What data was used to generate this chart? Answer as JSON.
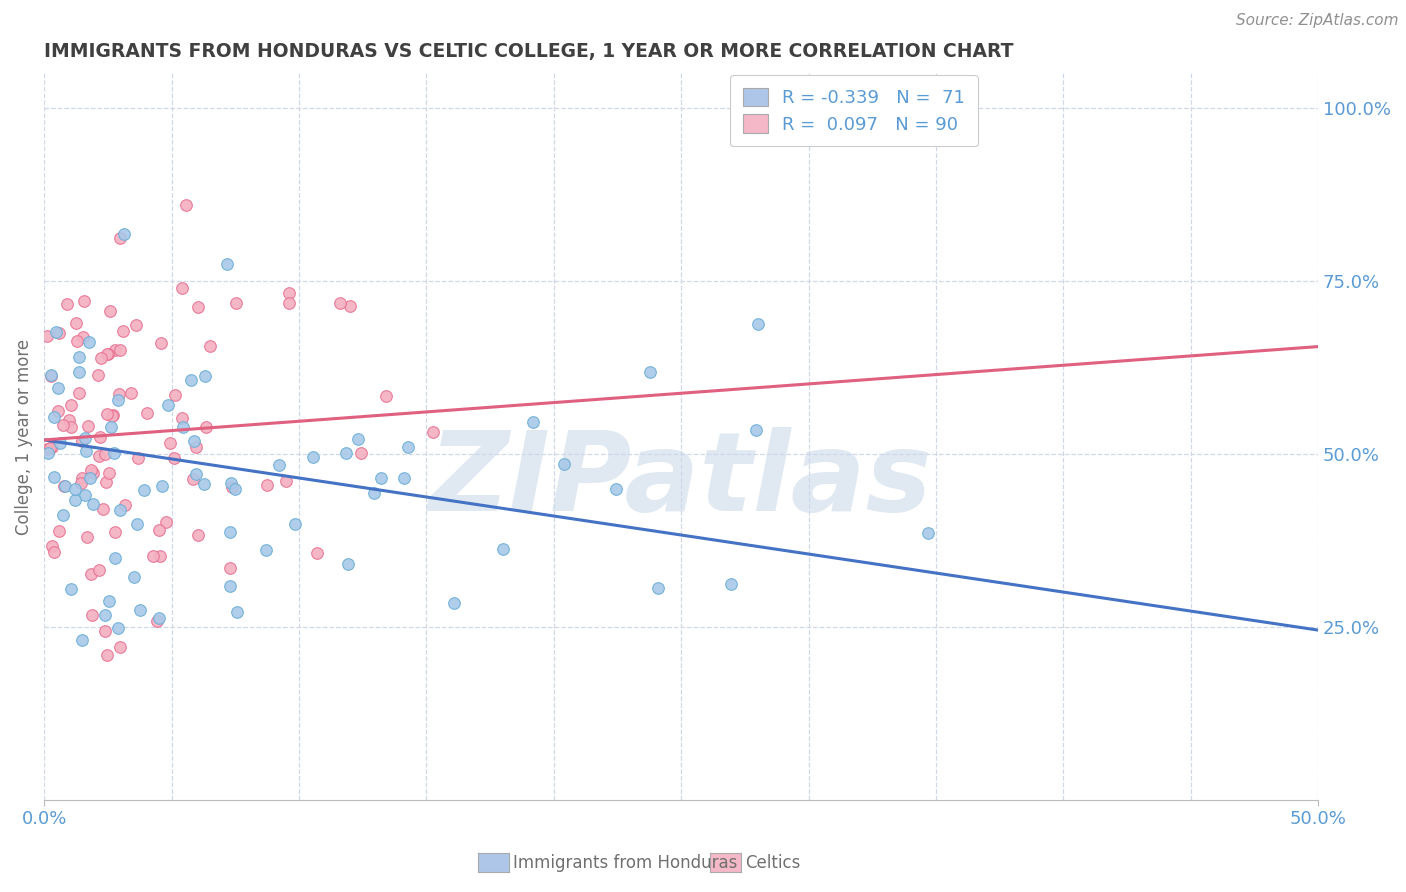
{
  "title": "IMMIGRANTS FROM HONDURAS VS CELTIC COLLEGE, 1 YEAR OR MORE CORRELATION CHART",
  "source_text": "Source: ZipAtlas.com",
  "ylabel": "College, 1 year or more",
  "xlim": [
    0.0,
    0.5
  ],
  "ylim": [
    0.0,
    1.05
  ],
  "xtick_labels": [
    "0.0%",
    "50.0%"
  ],
  "ytick_labels_right": [
    "25.0%",
    "50.0%",
    "75.0%",
    "100.0%"
  ],
  "ytick_values_right": [
    0.25,
    0.5,
    0.75,
    1.0
  ],
  "legend_entries": [
    {
      "label_r": "R = -0.339",
      "label_n": "N =  71",
      "color": "#aec6e8"
    },
    {
      "label_r": "R =  0.097",
      "label_n": "N = 90",
      "color": "#f4b8c8"
    }
  ],
  "scatter_blue": {
    "color": "#a8c8e8",
    "edge_color": "#6aaed6",
    "R": -0.339,
    "N": 71,
    "seed": 42
  },
  "scatter_pink": {
    "color": "#f4b0c0",
    "edge_color": "#e87090",
    "R": 0.097,
    "N": 90,
    "seed": 7
  },
  "trend_blue_color": "#4472c4",
  "trend_pink_color": "#e06080",
  "watermark": "ZIPatlas",
  "watermark_color": "#c8d8e8",
  "background_color": "#ffffff",
  "grid_color": "#d0d8e8",
  "title_color": "#404040",
  "axis_label_color": "#707070",
  "tick_label_color_blue": "#5b9bd5",
  "source_color": "#909090",
  "trend_blue_x0": 0.0,
  "trend_blue_y0": 0.52,
  "trend_blue_x1": 0.5,
  "trend_blue_y1": 0.245,
  "trend_pink_x0": 0.0,
  "trend_pink_y0": 0.52,
  "trend_pink_x1": 0.5,
  "trend_pink_y1": 0.655
}
